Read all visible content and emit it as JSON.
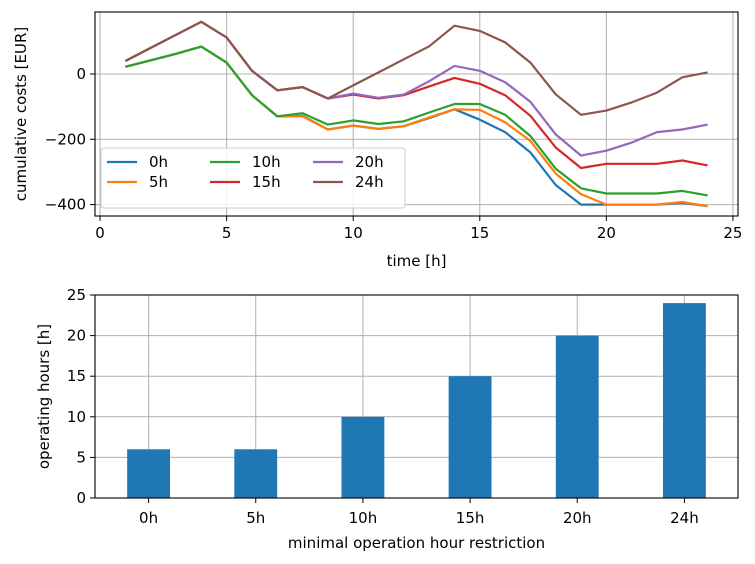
{
  "chart_data": [
    {
      "type": "line",
      "xlabel": "time [h]",
      "ylabel": "cumulative costs [EUR]",
      "xlim": [
        -0.2,
        25.2
      ],
      "ylim": [
        -435,
        190
      ],
      "xticks": [
        0,
        5,
        10,
        15,
        20,
        25
      ],
      "yticks": [
        -400,
        -200,
        0
      ],
      "grid": true,
      "legend": {
        "placement": "lower-left",
        "columns": 3
      },
      "x": [
        1,
        2,
        3,
        4,
        5,
        6,
        7,
        8,
        9,
        10,
        11,
        12,
        13,
        14,
        15,
        16,
        17,
        18,
        19,
        20,
        21,
        22,
        23,
        24
      ],
      "series": [
        {
          "name": "0h",
          "color": "#1f77b4",
          "values": [
            22,
            42,
            62,
            84,
            35,
            -65,
            -130,
            -128,
            -170,
            -158,
            -168,
            -160,
            -135,
            -108,
            -140,
            -178,
            -240,
            -340,
            -400,
            -400,
            -400,
            -400,
            -395,
            -405
          ]
        },
        {
          "name": "5h",
          "color": "#ff7f0e",
          "values": [
            22,
            42,
            62,
            84,
            35,
            -65,
            -130,
            -130,
            -170,
            -158,
            -168,
            -160,
            -133,
            -108,
            -110,
            -148,
            -205,
            -305,
            -368,
            -400,
            -400,
            -400,
            -392,
            -405
          ]
        },
        {
          "name": "10h",
          "color": "#2ca02c",
          "values": [
            22,
            42,
            62,
            84,
            35,
            -65,
            -130,
            -120,
            -155,
            -142,
            -153,
            -145,
            -118,
            -92,
            -92,
            -125,
            -190,
            -290,
            -350,
            -366,
            -366,
            -366,
            -358,
            -372
          ]
        },
        {
          "name": "15h",
          "color": "#d62728",
          "values": [
            40,
            80,
            120,
            160,
            112,
            10,
            -50,
            -40,
            -75,
            -63,
            -75,
            -65,
            -38,
            -12,
            -30,
            -65,
            -128,
            -225,
            -288,
            -275,
            -275,
            -275,
            -265,
            -280
          ]
        },
        {
          "name": "20h",
          "color": "#9467bd",
          "values": [
            40,
            80,
            120,
            160,
            112,
            10,
            -50,
            -40,
            -75,
            -60,
            -73,
            -63,
            -22,
            25,
            10,
            -25,
            -85,
            -185,
            -250,
            -235,
            -210,
            -178,
            -170,
            -155
          ]
        },
        {
          "name": "24h",
          "color": "#8c564b",
          "values": [
            40,
            80,
            120,
            160,
            112,
            10,
            -50,
            -40,
            -75,
            -35,
            5,
            45,
            85,
            148,
            132,
            97,
            35,
            -62,
            -125,
            -112,
            -87,
            -57,
            -10,
            5
          ]
        }
      ]
    },
    {
      "type": "bar",
      "xlabel": "minimal operation hour restriction",
      "ylabel": "operating hours [h]",
      "ylim": [
        0,
        25
      ],
      "yticks": [
        0,
        5,
        10,
        15,
        20,
        25
      ],
      "grid": true,
      "color": "#1f77b4",
      "categories": [
        "0h",
        "5h",
        "10h",
        "15h",
        "20h",
        "24h"
      ],
      "values": [
        6,
        6,
        10,
        15,
        20,
        24
      ]
    }
  ]
}
